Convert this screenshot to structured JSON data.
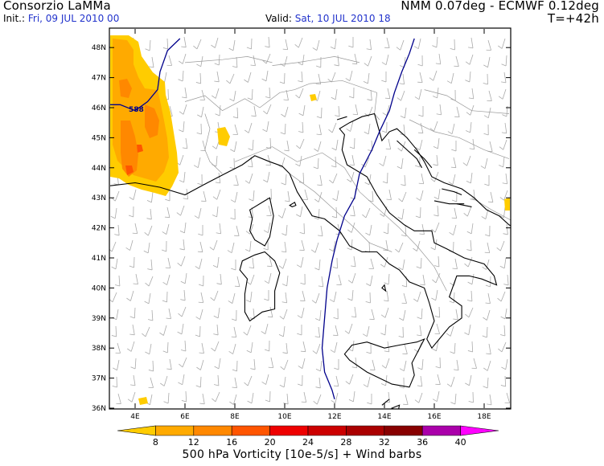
{
  "header": {
    "source": "Consorzio LaMMa",
    "model": "NMM 0.07deg - ECMWF 0.12deg",
    "init_label": "Init.:",
    "init_value": "Fri, 09 JUL 2010  00",
    "valid_label": "Valid:",
    "valid_value": "Sat, 10 JUL 2010  18",
    "lead_time": "T=+42h"
  },
  "axes": {
    "lon_labels": [
      "4E",
      "6E",
      "8E",
      "10E",
      "12E",
      "14E",
      "16E",
      "18E"
    ],
    "lat_labels": [
      "48N",
      "47N",
      "46N",
      "45N",
      "44N",
      "43N",
      "42N",
      "41N",
      "40N",
      "39N",
      "38N",
      "37N",
      "36N"
    ],
    "lon_range": [
      3,
      19.5
    ],
    "lat_range": [
      36,
      48.3
    ]
  },
  "contour_label": "588",
  "colorbar": {
    "levels": [
      "8",
      "12",
      "16",
      "20",
      "24",
      "28",
      "32",
      "36",
      "40"
    ],
    "colors": [
      "#ffcc00",
      "#ffaa00",
      "#ff8800",
      "#ff5500",
      "#ee0000",
      "#cc0000",
      "#aa0000",
      "#880000",
      "#aa00aa",
      "#ff00ff"
    ]
  },
  "caption": "500 hPa Vorticity [10e-5/s] + Wind barbs",
  "colors": {
    "frame": "#000000",
    "coast": "#000000",
    "borders": "#999999",
    "contour": "#00008b",
    "barbs": "#aaaaaa"
  }
}
